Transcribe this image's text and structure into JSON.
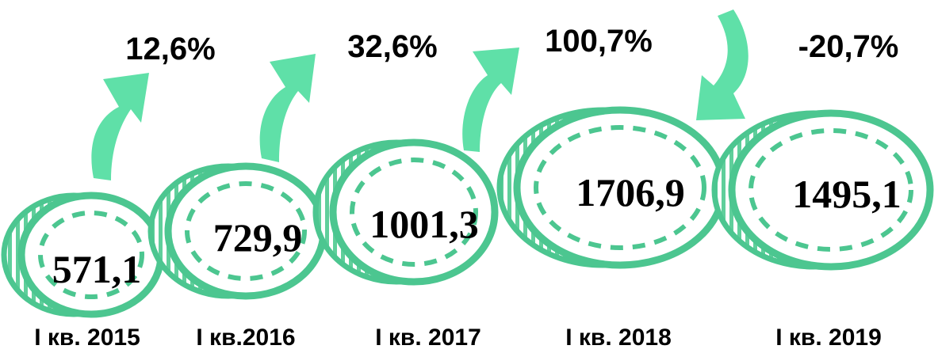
{
  "items": [
    {
      "period": "I кв. 2015",
      "value": "571,1"
    },
    {
      "period": "I кв.2016",
      "value": "729,9"
    },
    {
      "period": "I кв. 2017",
      "value": "1001,3"
    },
    {
      "period": "I кв. 2018",
      "value": "1706,9"
    },
    {
      "period": "I кв. 2019",
      "value": "1495,1"
    }
  ],
  "changes": [
    "12,6%",
    "32,6%",
    "100,7%",
    "-20,7%"
  ]
}
